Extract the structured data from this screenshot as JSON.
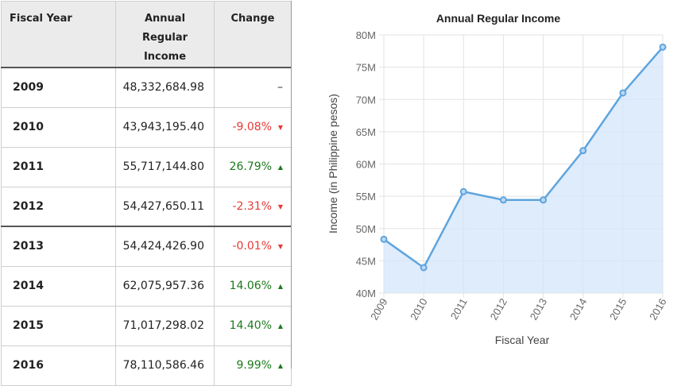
{
  "table": {
    "headers": {
      "year": "Fiscal Year",
      "income_line1": "Annual Regular",
      "income_line2": "Income",
      "change": "Change"
    },
    "rows": [
      {
        "year": "2009",
        "income": "48,332,684.98",
        "change": "",
        "arrow": "–",
        "dir": "none"
      },
      {
        "year": "2010",
        "income": "43,943,195.40",
        "change": "-9.08%",
        "arrow": "▼",
        "dir": "down"
      },
      {
        "year": "2011",
        "income": "55,717,144.80",
        "change": "26.79%",
        "arrow": "▲",
        "dir": "up"
      },
      {
        "year": "2012",
        "income": "54,427,650.11",
        "change": "-2.31%",
        "arrow": "▼",
        "dir": "down"
      },
      {
        "year": "2013",
        "income": "54,424,426.90",
        "change": "-0.01%",
        "arrow": "▼",
        "dir": "down"
      },
      {
        "year": "2014",
        "income": "62,075,957.36",
        "change": "14.06%",
        "arrow": "▲",
        "dir": "up"
      },
      {
        "year": "2015",
        "income": "71,017,298.02",
        "change": "14.40%",
        "arrow": "▲",
        "dir": "up"
      },
      {
        "year": "2016",
        "income": "78,110,586.46",
        "change": "9.99%",
        "arrow": "▲",
        "dir": "up"
      }
    ],
    "colors": {
      "negative": "#e53935",
      "positive": "#1d7a1d",
      "header_bg": "#ebebeb"
    }
  },
  "chart_data": {
    "type": "area",
    "title": "Annual Regular Income",
    "xlabel": "Fiscal Year",
    "ylabel": "Income (in Philippine pesos)",
    "categories": [
      "2009",
      "2010",
      "2011",
      "2012",
      "2013",
      "2014",
      "2015",
      "2016"
    ],
    "series": [
      {
        "values": [
          48332684.98,
          43943195.4,
          55717144.8,
          54427650.11,
          54424426.9,
          62075957.36,
          71017298.02,
          78110586.46
        ]
      }
    ],
    "ylim": [
      40000000,
      80000000
    ],
    "yticks": [
      40000000,
      45000000,
      50000000,
      55000000,
      60000000,
      65000000,
      70000000,
      75000000,
      80000000
    ],
    "ytick_labels": [
      "40M",
      "45M",
      "50M",
      "55M",
      "60M",
      "65M",
      "70M",
      "75M",
      "80M"
    ],
    "grid": true,
    "colors": {
      "line": "#5ea4de",
      "fill": "#d4e6fb",
      "grid": "#e3e3e3",
      "point_fill": "#bcd8f3"
    }
  }
}
